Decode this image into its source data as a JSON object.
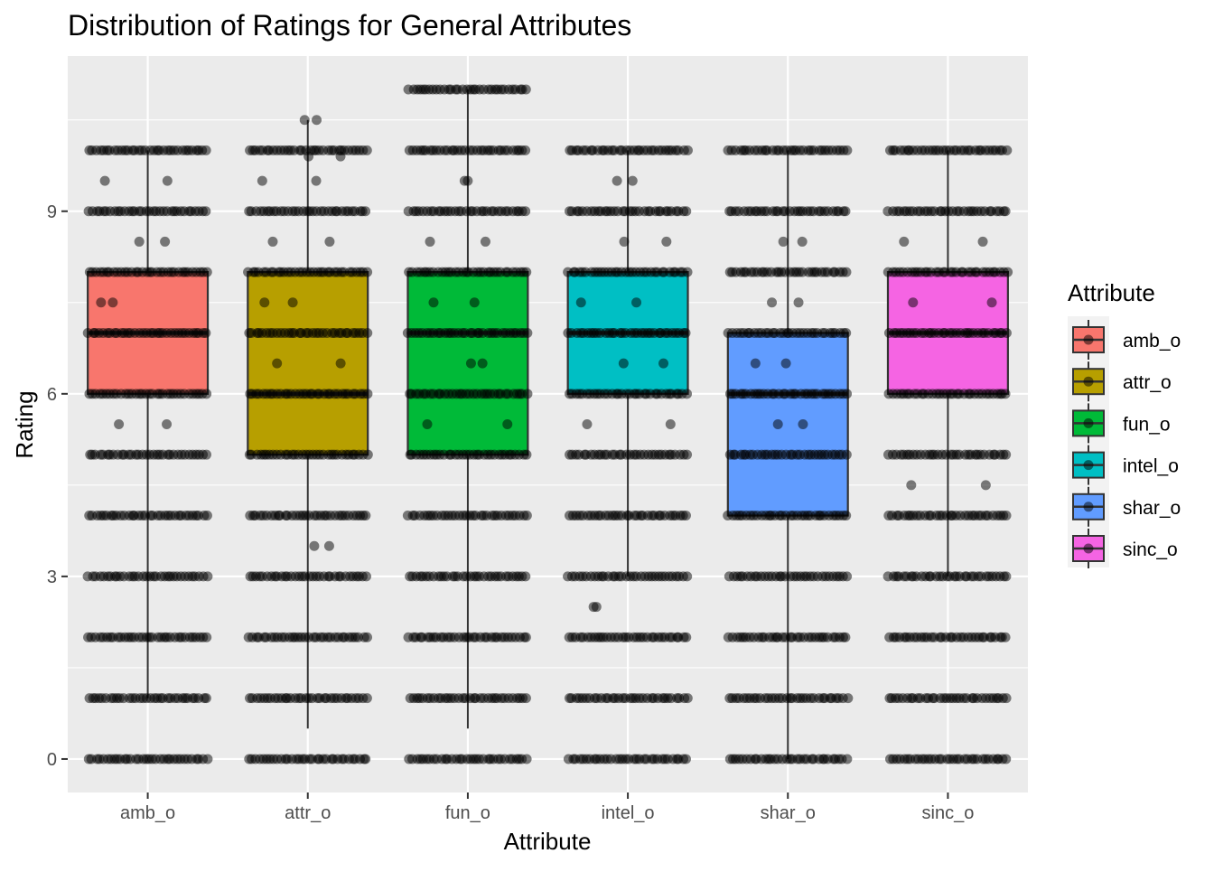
{
  "chart_data": {
    "type": "boxplot",
    "title": "Distribution of Ratings for General Attributes",
    "xlabel": "Attribute",
    "ylabel": "Rating",
    "ylim": [
      -0.55,
      11.55
    ],
    "yticks": [
      0,
      3,
      6,
      9
    ],
    "grid": true,
    "legend": {
      "title": "Attribute",
      "position": "right"
    },
    "categories": [
      "amb_o",
      "attr_o",
      "fun_o",
      "intel_o",
      "shar_o",
      "sinc_o"
    ],
    "colors": [
      "#F8766D",
      "#B79F00",
      "#00BA38",
      "#00BFC4",
      "#619CFF",
      "#F564E3"
    ],
    "boxes": [
      {
        "name": "amb_o",
        "whisker_low": 1,
        "q1": 6,
        "median": 7,
        "q3": 8,
        "whisker_high": 10
      },
      {
        "name": "attr_o",
        "whisker_low": 0.5,
        "q1": 5,
        "median": 6,
        "q3": 8,
        "whisker_high": 10.5
      },
      {
        "name": "fun_o",
        "whisker_low": 0.5,
        "q1": 5,
        "median": 7,
        "q3": 8,
        "whisker_high": 11
      },
      {
        "name": "intel_o",
        "whisker_low": 3,
        "q1": 6,
        "median": 7,
        "q3": 8,
        "whisker_high": 10
      },
      {
        "name": "shar_o",
        "whisker_low": 0,
        "q1": 4,
        "median": 6,
        "q3": 7,
        "whisker_high": 10
      },
      {
        "name": "sinc_o",
        "whisker_low": 3,
        "q1": 6,
        "median": 7,
        "q3": 8,
        "whisker_high": 10
      }
    ],
    "jitter_points": [
      {
        "category": "amb_o",
        "values": [
          10,
          9,
          8,
          7,
          6,
          5,
          4,
          3,
          2,
          1,
          0,
          9.5,
          8.5,
          7.5,
          5.5
        ]
      },
      {
        "category": "attr_o",
        "values": [
          10,
          9,
          8,
          7,
          6,
          5,
          4,
          3,
          2,
          1,
          0,
          10.5,
          9.5,
          9.9,
          8.5,
          7.5,
          6.5,
          3.5
        ]
      },
      {
        "category": "fun_o",
        "values": [
          10,
          9,
          8,
          7,
          6,
          5,
          4,
          3,
          2,
          1,
          0,
          11,
          9.5,
          8.5,
          7.5,
          6.5,
          5.5
        ]
      },
      {
        "category": "intel_o",
        "values": [
          10,
          9,
          8,
          7,
          6,
          5,
          4,
          3,
          2,
          1,
          0,
          9.5,
          8.5,
          7.5,
          6.5,
          5.5,
          2.5
        ]
      },
      {
        "category": "shar_o",
        "values": [
          10,
          9,
          8,
          7,
          6,
          5,
          4,
          3,
          2,
          1,
          0,
          8.5,
          7.5,
          6.5,
          5.5
        ]
      },
      {
        "category": "sinc_o",
        "values": [
          10,
          9,
          8,
          7,
          6,
          5,
          4,
          3,
          2,
          1,
          0,
          8.5,
          7.5,
          4.5
        ]
      }
    ]
  }
}
